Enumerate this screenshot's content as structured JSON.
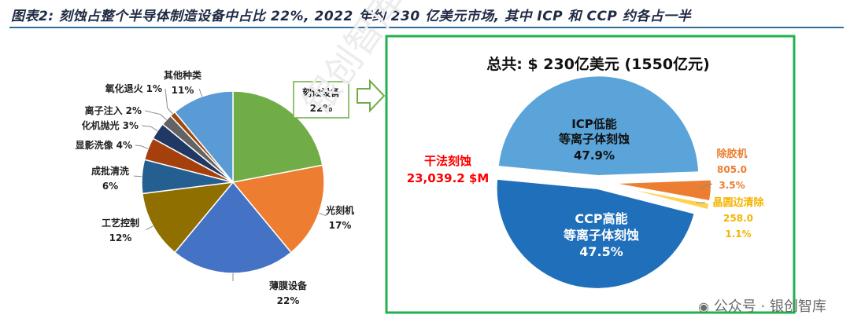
{
  "header": {
    "title": "图表2: 刻蚀占整个半导体制造设备中占比 22%, 2022 年约 230 亿美元市场, 其中 ICP 和 CCP 约各占一半"
  },
  "chart_data": [
    {
      "type": "pie",
      "title": "",
      "slices": [
        {
          "label": "刻蚀设备",
          "value": 22,
          "display": "22%",
          "color": "#70ad47"
        },
        {
          "label": "光刻机",
          "value": 17,
          "display": "17%",
          "color": "#ed7d31"
        },
        {
          "label": "薄膜设备",
          "value": 22,
          "display": "22%",
          "color": "#4472c4"
        },
        {
          "label": "工艺控制",
          "value": 12,
          "display": "12%",
          "color": "#8f6f00"
        },
        {
          "label": "成批清洗",
          "value": 6,
          "display": "6%",
          "color": "#255e91"
        },
        {
          "label": "显影洗像",
          "value": 4,
          "display": "4%",
          "color": "#a5400c"
        },
        {
          "label": "化机抛光",
          "value": 3,
          "display": "3%",
          "color": "#203864"
        },
        {
          "label": "离子注入",
          "value": 2,
          "display": "2%",
          "color": "#636363"
        },
        {
          "label": "氧化退火",
          "value": 1,
          "display": "1%",
          "color": "#9e480e"
        },
        {
          "label": "其他种类",
          "value": 11,
          "display": "11%",
          "color": "#5b9bd5"
        }
      ]
    },
    {
      "type": "pie",
      "title": "总共: $ 230亿美元 (1550亿元)",
      "total_label": "干法刻蚀",
      "total_value": "23,039.2 $M",
      "slices": [
        {
          "label": "ICP低能 等离子体刻蚀",
          "line1": "ICP低能",
          "line2": "等离子体刻蚀",
          "value": 47.9,
          "display": "47.9%",
          "color": "#5aa4d9"
        },
        {
          "label": "除胶机",
          "value": 3.5,
          "amount": "805.0",
          "display": "3.5%",
          "color": "#ed7d31"
        },
        {
          "label": "晶圆边清除",
          "value": 1.1,
          "amount": "258.0",
          "display": "1.1%",
          "color": "#ffd24d"
        },
        {
          "label": "CCP高能 等离子体刻蚀",
          "line1": "CCP高能",
          "line2": "等离子体刻蚀",
          "value": 47.5,
          "display": "47.5%",
          "color": "#1f6fba"
        }
      ]
    }
  ],
  "watermark": {
    "text": "公众号 · 银创智库",
    "faint": "银创智库"
  },
  "colors": {
    "frame": "#22b14c",
    "title_rule": "#2e6f9e",
    "title_text": "#1f2a44",
    "red_label": "#ff0000",
    "orange_label": "#ed7d31",
    "yellow_label": "#f4b400"
  }
}
